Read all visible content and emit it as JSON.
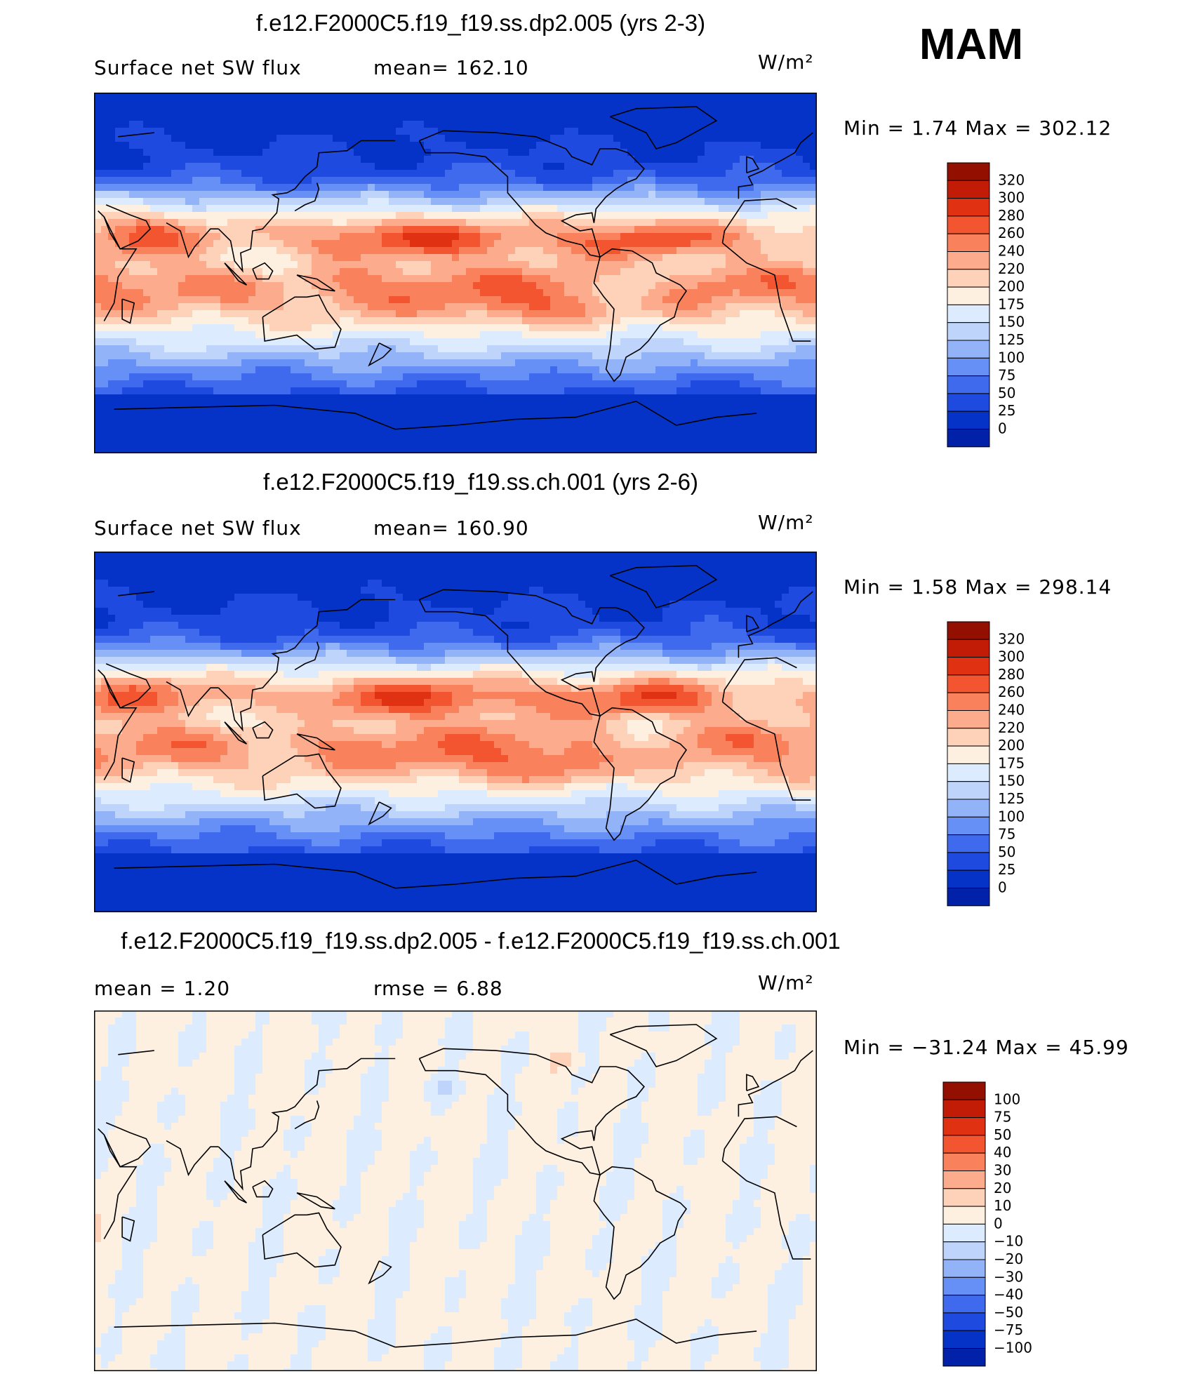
{
  "season": "MAM",
  "palettes": {
    "abs": [
      "#000d87",
      "#0021a8",
      "#0633c7",
      "#1f4ae0",
      "#3f6aed",
      "#6690f5",
      "#93b3f8",
      "#bfd4fb",
      "#dcebfd",
      "#fdf0e1",
      "#fdd2b9",
      "#fcac8c",
      "#f9825d",
      "#f25530",
      "#e03212",
      "#c21c07",
      "#931000"
    ],
    "diff": [
      "#000d87",
      "#0021a8",
      "#0633c7",
      "#1f4ae0",
      "#3f6aed",
      "#6690f5",
      "#93b3f8",
      "#bfd4fb",
      "#dcebfd",
      "#fdf0e1",
      "#fdd2b9",
      "#fcac8c",
      "#f9825d",
      "#f25530",
      "#e03212",
      "#c21c07",
      "#931000"
    ]
  },
  "panels": [
    {
      "title": "f.e12.F2000C5.f19_f19.ss.dp2.005 (yrs 2-3)",
      "left_label": "Surface net SW flux",
      "center_label": "mean=  162.10",
      "units": "W/m²",
      "min_max": "Min =     1.74  Max =  302.12",
      "colorbar": {
        "levels": [
          "320",
          "300",
          "280",
          "260",
          "240",
          "220",
          "200",
          "175",
          "150",
          "125",
          "100",
          "75",
          "50",
          "25",
          "0"
        ],
        "palette": "abs"
      },
      "field": {
        "kind": "abs",
        "variant": 0
      }
    },
    {
      "title": "f.e12.F2000C5.f19_f19.ss.ch.001 (yrs 2-6)",
      "left_label": "Surface net SW flux",
      "center_label": "mean=  160.90",
      "units": "W/m²",
      "min_max": "Min =     1.58  Max =  298.14",
      "colorbar": {
        "levels": [
          "320",
          "300",
          "280",
          "260",
          "240",
          "220",
          "200",
          "175",
          "150",
          "125",
          "100",
          "75",
          "50",
          "25",
          "0"
        ],
        "palette": "abs"
      },
      "field": {
        "kind": "abs",
        "variant": 1
      }
    },
    {
      "title": "f.e12.F2000C5.f19_f19.ss.dp2.005 - f.e12.F2000C5.f19_f19.ss.ch.001",
      "left_label": "mean =     1.20",
      "center_label": "rmse =     6.88",
      "units": "W/m²",
      "min_max": "Min = −31.24  Max =    45.99",
      "colorbar": {
        "levels": [
          "100",
          "75",
          "50",
          "40",
          "30",
          "20",
          "10",
          "0",
          "−10",
          "−20",
          "−30",
          "−40",
          "−50",
          "−75",
          "−100"
        ],
        "palette": "diff"
      },
      "field": {
        "kind": "diff",
        "variant": 0
      }
    }
  ]
}
